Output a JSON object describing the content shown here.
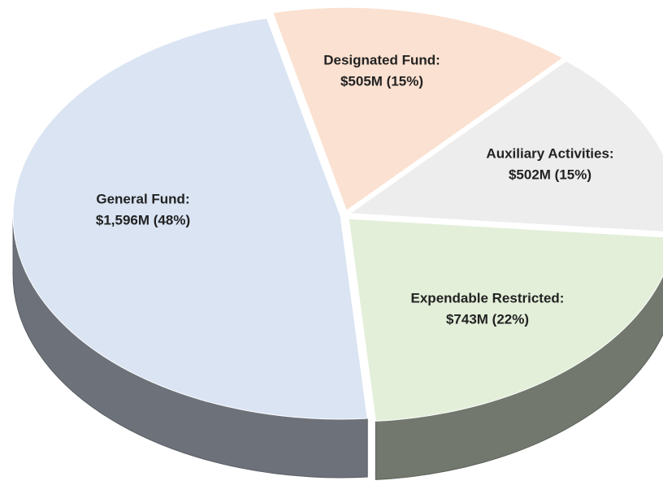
{
  "chart_data": {
    "type": "pie",
    "categories": [
      "Designated Fund:",
      "Auxiliary Activities:",
      "Expendable Restricted:",
      "General Fund:"
    ],
    "values": [
      505,
      502,
      743,
      1596
    ],
    "value_labels": [
      "$505M (15%)",
      "$502M (15%)",
      "$743M (22%)",
      "$1,596M (48%)"
    ],
    "colors": [
      "#fbe1d1",
      "#ededed",
      "#e3efd9",
      "#dae4f3"
    ]
  }
}
